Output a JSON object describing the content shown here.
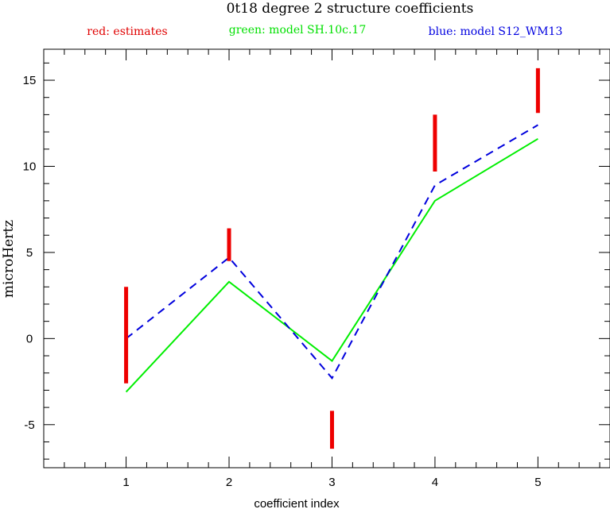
{
  "chart_data": {
    "type": "line",
    "title": "0t18 degree 2 structure coefficients",
    "legend": [
      {
        "text": "red: estimates",
        "color": "#e00000"
      },
      {
        "text": "green: model SH.10c.17",
        "color": "#00e000"
      },
      {
        "text": "blue: model S12_WM13",
        "color": "#0000e0"
      }
    ],
    "legend_placement": "top",
    "xlabel": "coefficient index",
    "ylabel": "microHertz",
    "xlim": [
      0.2,
      5.7
    ],
    "ylim": [
      -7.5,
      16.8
    ],
    "x_ticks": [
      1,
      2,
      3,
      4,
      5
    ],
    "y_ticks": [
      -5,
      0,
      5,
      10,
      15
    ],
    "grid": false,
    "estimates": {
      "name": "red: estimates",
      "color": "#ee0000",
      "x": [
        1,
        2,
        3,
        4,
        5
      ],
      "low": [
        -2.6,
        4.5,
        -6.4,
        9.7,
        13.1
      ],
      "high": [
        3.0,
        6.4,
        -4.2,
        13.0,
        15.7
      ]
    },
    "series": [
      {
        "name": "green: model SH.10c.17",
        "color": "#00ee00",
        "dash": "solid",
        "x": [
          1,
          2,
          3,
          4,
          5
        ],
        "values": [
          -3.1,
          3.3,
          -1.3,
          8.0,
          11.6
        ]
      },
      {
        "name": "blue: model S12_WM13",
        "color": "#0000dd",
        "dash": "dashed",
        "x": [
          1,
          2,
          3,
          4,
          5
        ],
        "values": [
          0.0,
          4.7,
          -2.3,
          8.9,
          12.4
        ]
      }
    ]
  }
}
